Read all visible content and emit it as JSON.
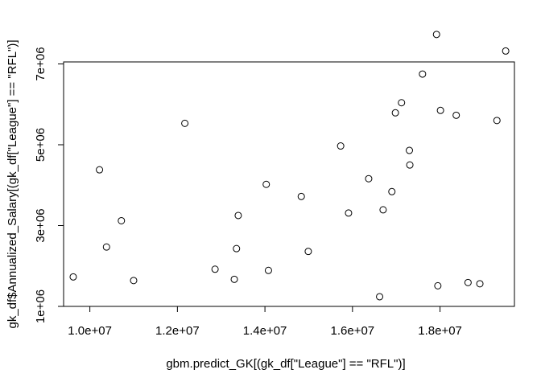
{
  "chart_data": {
    "type": "scatter",
    "title": "",
    "xlabel": "gbm.predict_GK[(gk_df[\"League\"] == \"RFL\")]",
    "ylabel": "gk_df$Annualized_Salary[(gk_df[\"League\"] == \"RFL\")]",
    "xlim": [
      9400000,
      19700000
    ],
    "ylim": [
      1000000,
      7050000
    ],
    "x_ticks": [
      10000000,
      12000000,
      14000000,
      16000000,
      18000000
    ],
    "x_tick_labels": [
      "1.0e+07",
      "1.2e+07",
      "1.4e+07",
      "1.6e+07",
      "1.8e+07"
    ],
    "y_ticks": [
      1000000,
      3000000,
      5000000,
      7000000
    ],
    "y_tick_labels": [
      "1e+06",
      "3e+06",
      "5e+06",
      "7e+06"
    ],
    "grid": false,
    "legend": "none",
    "points": [
      {
        "x": 9620000,
        "y": 1730000
      },
      {
        "x": 10220000,
        "y": 4380000
      },
      {
        "x": 10380000,
        "y": 2470000
      },
      {
        "x": 10720000,
        "y": 3120000
      },
      {
        "x": 11000000,
        "y": 1640000
      },
      {
        "x": 12170000,
        "y": 5530000
      },
      {
        "x": 12860000,
        "y": 1920000
      },
      {
        "x": 13300000,
        "y": 1670000
      },
      {
        "x": 13350000,
        "y": 2430000
      },
      {
        "x": 13390000,
        "y": 3250000
      },
      {
        "x": 14030000,
        "y": 4020000
      },
      {
        "x": 14080000,
        "y": 1890000
      },
      {
        "x": 14830000,
        "y": 3720000
      },
      {
        "x": 14990000,
        "y": 2360000
      },
      {
        "x": 15730000,
        "y": 4970000
      },
      {
        "x": 15910000,
        "y": 3310000
      },
      {
        "x": 16370000,
        "y": 4160000
      },
      {
        "x": 16620000,
        "y": 1240000
      },
      {
        "x": 16700000,
        "y": 3390000
      },
      {
        "x": 16900000,
        "y": 3840000
      },
      {
        "x": 16980000,
        "y": 5790000
      },
      {
        "x": 17120000,
        "y": 6040000
      },
      {
        "x": 17300000,
        "y": 4860000
      },
      {
        "x": 17310000,
        "y": 4500000
      },
      {
        "x": 17600000,
        "y": 6750000
      },
      {
        "x": 17920000,
        "y": 7730000
      },
      {
        "x": 17950000,
        "y": 1510000
      },
      {
        "x": 18010000,
        "y": 5850000
      },
      {
        "x": 18370000,
        "y": 5730000
      },
      {
        "x": 18640000,
        "y": 1590000
      },
      {
        "x": 18910000,
        "y": 1560000
      },
      {
        "x": 19300000,
        "y": 5600000
      },
      {
        "x": 19500000,
        "y": 7320000
      }
    ]
  }
}
